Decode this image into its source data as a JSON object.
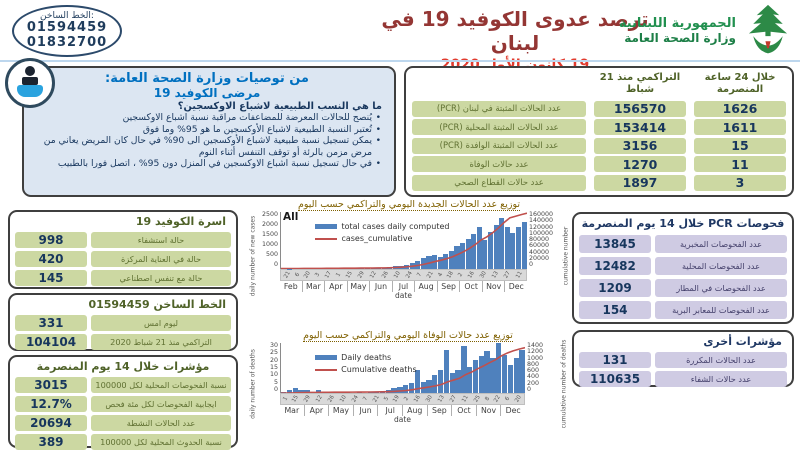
{
  "header": {
    "hotline_label": "الخط الساخن:",
    "hotline_numbers": [
      "01594459",
      "01832700"
    ],
    "title": "ترصد عدوى الكوفيد 19 في لبنان",
    "date": "19 كانون الأول 2020",
    "ministry_line1": "الجمهورية اللبنانية",
    "ministry_line2": "وزارة الصحة العامة"
  },
  "recommendations": {
    "title": "من توصيات وزارة الصحة العامة:",
    "subtitle": "مرضى الكوفيد 19",
    "question": "ما هي النسب الطبيعية لاشباع الاوكسجين؟",
    "bullets": [
      "يُنصح للحالات المعرضة للمضاعفات مراقبة نسبة اشباع الاوكسجين",
      "تُعتبر النسبة الطبيعية لاشباع الأوكسجين ما هو 95% وما فوق",
      "يمكن تسجيل نسبة طبيعية لاشباع الأوكسجين الى 90% في حال كان المريض يعاني من مرض مزمن بالرئة أو توقف التنفس أثناء النوم",
      "في حال تسجيل نسبة اشباع الاوكسجين في المنزل دون 95% ، اتصل فورا بالطبيب"
    ]
  },
  "main_table": {
    "col_daily": "خلال 24 ساعة المنصرمة",
    "col_cumulative": "التراكمي منذ 21 شباط",
    "rows": [
      {
        "label": "عدد الحالات المثبتة في لبنان  (PCR)",
        "cumulative": "156570",
        "daily": "1626"
      },
      {
        "label": "عدد الحالات المثبتة المحلية (PCR)",
        "cumulative": "153414",
        "daily": "1611"
      },
      {
        "label": "عدد الحالات المثبتة الوافدة (PCR)",
        "cumulative": "3156",
        "daily": "15"
      },
      {
        "label": "عدد حالات الوفاة",
        "cumulative": "1270",
        "daily": "11"
      },
      {
        "label": "عدد حالات القطاع الصحي",
        "cumulative": "1897",
        "daily": "3"
      }
    ]
  },
  "beds_box": {
    "title": "اسرة الكوفيد 19",
    "rows": [
      {
        "value": "998",
        "label": "حالة استشفاء"
      },
      {
        "value": "420",
        "label": "حالة في العناية المركزة"
      },
      {
        "value": "145",
        "label": "حالة مع تنفس اصطناعي"
      }
    ]
  },
  "hotline_box": {
    "title": "الخط الساخن 01594459",
    "rows": [
      {
        "value": "331",
        "label": "ليوم امس"
      },
      {
        "value": "104104",
        "label": "التراكمي منذ 21 شباط 2020"
      }
    ]
  },
  "indicators_box": {
    "title": "مؤشرات خلال 14 يوم المنصرمة",
    "rows": [
      {
        "value": "3015",
        "label": "نسبة الفحوصات المحلية لكل 100000"
      },
      {
        "value": "12.7%",
        "label": "ايجابية الفحوصات لكل مئة فحص"
      },
      {
        "value": "20694",
        "label": "عدد الحالات النشطة"
      },
      {
        "value": "389",
        "label": "نسبة الحدوث المحلية لكل 100000"
      }
    ]
  },
  "pcr_box": {
    "title": "فحوصات PCR خلال 14 يوم المنصرمة",
    "rows": [
      {
        "value": "13845",
        "label": "عدد الفحوصات المخبرية"
      },
      {
        "value": "12482",
        "label": "عدد الفحوصات المحلية"
      },
      {
        "value": "1209",
        "label": "عدد الفحوصات في المطار"
      },
      {
        "value": "154",
        "label": "عدد الفحوصات للمعابر البرية"
      }
    ]
  },
  "other_box": {
    "title": "مؤشرات أخرى",
    "rows": [
      {
        "value": "131",
        "label": "عدد الحالات المكررة"
      },
      {
        "value": "110635",
        "label": "عدد حالات الشفاء"
      }
    ]
  },
  "colors": {
    "title_maroon": "#943634",
    "date_red": "#e23b2e",
    "ministry_green": "#21904f",
    "cell_green": "#ccd8a2",
    "cell_purple": "#cfcbe3",
    "navy": "#17365d",
    "olive": "#4f6228",
    "reco_blue": "#0070c0",
    "bar_blue": "#4f81bd",
    "line_red": "#c0504d"
  },
  "chart_data": [
    {
      "type": "bar+line",
      "title": "توزيع عدد الحالات الجديدة اليومي والتراكمي حسب اليوم",
      "corner_label": "All",
      "legend": [
        {
          "label": "total cases daily computed",
          "kind": "bar"
        },
        {
          "label": "cases_cumulative",
          "kind": "line"
        }
      ],
      "xlabel": "date",
      "ylabel_left": "daily number of new cases",
      "ylabel_right": "cumulative number",
      "yleft_max": 2500,
      "yright_max": 160000,
      "yticks_left": [
        "2500",
        "2000",
        "1500",
        "1000",
        "500",
        "0"
      ],
      "yticks_right": [
        "160000",
        "140000",
        "120000",
        "100000",
        "80000",
        "60000",
        "40000",
        "20000",
        "0"
      ],
      "months": [
        "Feb",
        "Mar",
        "Apr",
        "May",
        "Jun",
        "Jul",
        "Aug",
        "Sep",
        "Oct",
        "Nov",
        "Dec"
      ],
      "tick_days": [
        "21",
        "6",
        "20",
        "3",
        "17",
        "1",
        "15",
        "29",
        "12",
        "26",
        "10",
        "24",
        "7",
        "21",
        "4",
        "18",
        "2",
        "16",
        "30",
        "13",
        "27",
        "11"
      ],
      "bars": [
        2,
        4,
        10,
        18,
        25,
        22,
        15,
        12,
        20,
        16,
        26,
        32,
        22,
        30,
        18,
        15,
        22,
        28,
        42,
        65,
        105,
        135,
        175,
        255,
        320,
        460,
        560,
        610,
        520,
        640,
        780,
        1020,
        1120,
        1320,
        1530,
        1820,
        1250,
        1640,
        1930,
        2220,
        1850,
        1560,
        1820,
        2050
      ],
      "line": [
        250,
        300,
        380,
        480,
        600,
        720,
        790,
        850,
        930,
        1000,
        1100,
        1250,
        1350,
        1500,
        1600,
        1700,
        1800,
        1950,
        2200,
        2600,
        3300,
        4200,
        5400,
        7100,
        9300,
        12400,
        16200,
        20400,
        24000,
        28400,
        33800,
        40900,
        48700,
        57900,
        68600,
        81300,
        90000,
        101500,
        115000,
        130500,
        143400,
        148000,
        152500,
        156570
      ]
    },
    {
      "type": "bar+line",
      "title": "توزيع عدد حالات الوفاة اليومي والتراكمي حسب اليوم",
      "corner_label": "",
      "legend": [
        {
          "label": "Daily deaths",
          "kind": "bar"
        },
        {
          "label": "Cumulative deaths",
          "kind": "line"
        }
      ],
      "xlabel": "date",
      "ylabel_left": "daily number of deaths",
      "ylabel_right": "cumulative number of deaths",
      "yleft_max": 30,
      "yright_max": 1400,
      "yticks_left": [
        "30",
        "25",
        "20",
        "15",
        "10",
        "5",
        "0"
      ],
      "yticks_right": [
        "1400",
        "1200",
        "1000",
        "800",
        "600",
        "400",
        "200",
        "0"
      ],
      "months": [
        "Mar",
        "Apr",
        "May",
        "Jun",
        "Jul",
        "Aug",
        "Sep",
        "Oct",
        "Nov",
        "Dec"
      ],
      "tick_days": [
        "1",
        "15",
        "29",
        "12",
        "26",
        "10",
        "24",
        "7",
        "21",
        "5",
        "19",
        "2",
        "16",
        "30",
        "13",
        "27",
        "11",
        "25",
        "8",
        "22",
        "6",
        "20"
      ],
      "bars": [
        1,
        2,
        3,
        2,
        2,
        1,
        2,
        1,
        1,
        0,
        1,
        1,
        0,
        1,
        0,
        1,
        1,
        1,
        2,
        3,
        4,
        5,
        6,
        14,
        7,
        8,
        11,
        14,
        26,
        12,
        14,
        28,
        16,
        20,
        22,
        25,
        21,
        30,
        23,
        17,
        21,
        26
      ],
      "line": [
        4,
        8,
        14,
        19,
        22,
        25,
        28,
        30,
        31,
        32,
        33,
        34,
        35,
        36,
        37,
        38,
        40,
        43,
        48,
        55,
        66,
        80,
        98,
        130,
        155,
        180,
        210,
        250,
        320,
        370,
        420,
        520,
        590,
        680,
        760,
        850,
        930,
        1040,
        1120,
        1180,
        1230,
        1270
      ]
    }
  ]
}
